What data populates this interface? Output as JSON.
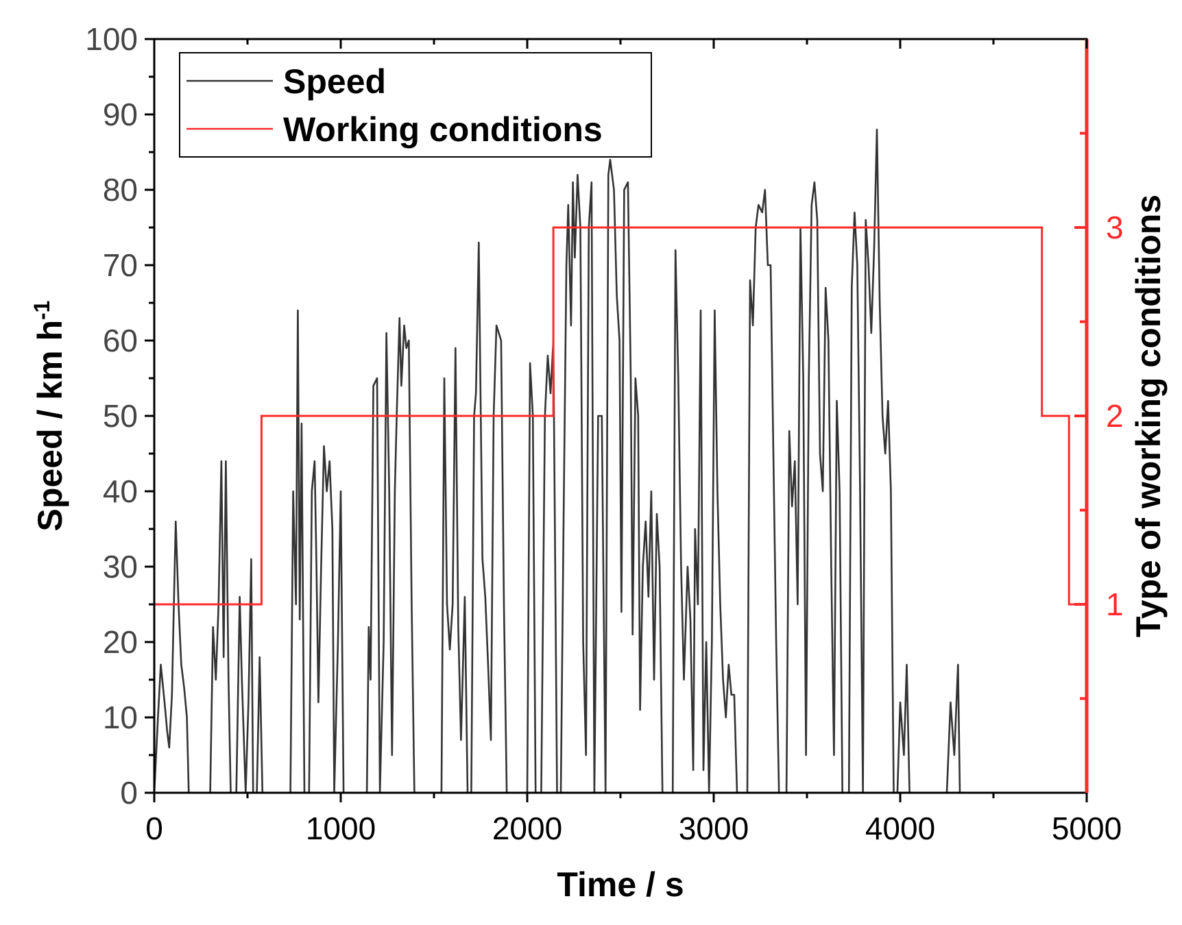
{
  "chart_data": {
    "type": "line",
    "xlabel": "Time / s",
    "ylabel": "Speed / km h",
    "ylabel_superscript": "-1",
    "y2label": "Type of working conditions",
    "xlim": [
      0,
      5000
    ],
    "ylim": [
      0,
      100
    ],
    "y2lim": [
      0,
      4
    ],
    "x_ticks": [
      0,
      1000,
      2000,
      3000,
      4000,
      5000
    ],
    "y_ticks": [
      0,
      10,
      20,
      30,
      40,
      50,
      60,
      70,
      80,
      90,
      100
    ],
    "y2_ticks": [
      1,
      2,
      3
    ],
    "legend": [
      "Speed",
      "Working conditions"
    ],
    "legend_position": "top-left",
    "colors": {
      "speed": "#333333",
      "conditions": "#ff2a2a",
      "axis": "#000000"
    },
    "series": [
      {
        "name": "Speed",
        "axis": "left",
        "points": [
          [
            0,
            0
          ],
          [
            20,
            10
          ],
          [
            35,
            17
          ],
          [
            55,
            12
          ],
          [
            70,
            8
          ],
          [
            80,
            6
          ],
          [
            95,
            13
          ],
          [
            105,
            25
          ],
          [
            115,
            36
          ],
          [
            130,
            25
          ],
          [
            145,
            17
          ],
          [
            160,
            14
          ],
          [
            175,
            10
          ],
          [
            185,
            0
          ],
          [
            300,
            0
          ],
          [
            315,
            22
          ],
          [
            330,
            15
          ],
          [
            345,
            25
          ],
          [
            360,
            44
          ],
          [
            372,
            18
          ],
          [
            384,
            44
          ],
          [
            398,
            15
          ],
          [
            410,
            0
          ],
          [
            440,
            0
          ],
          [
            458,
            26
          ],
          [
            470,
            15
          ],
          [
            490,
            0
          ],
          [
            505,
            12
          ],
          [
            520,
            31
          ],
          [
            530,
            0
          ],
          [
            550,
            0
          ],
          [
            565,
            18
          ],
          [
            580,
            0
          ],
          [
            730,
            0
          ],
          [
            745,
            40
          ],
          [
            760,
            25
          ],
          [
            770,
            64
          ],
          [
            780,
            23
          ],
          [
            790,
            49
          ],
          [
            805,
            0
          ],
          [
            830,
            0
          ],
          [
            845,
            40
          ],
          [
            860,
            44
          ],
          [
            870,
            30
          ],
          [
            880,
            12
          ],
          [
            895,
            30
          ],
          [
            910,
            46
          ],
          [
            925,
            40
          ],
          [
            940,
            44
          ],
          [
            955,
            35
          ],
          [
            965,
            0
          ],
          [
            985,
            20
          ],
          [
            1000,
            40
          ],
          [
            1015,
            0
          ],
          [
            1140,
            0
          ],
          [
            1150,
            22
          ],
          [
            1160,
            15
          ],
          [
            1175,
            54
          ],
          [
            1195,
            55
          ],
          [
            1210,
            0
          ],
          [
            1230,
            20
          ],
          [
            1245,
            61
          ],
          [
            1260,
            40
          ],
          [
            1275,
            5
          ],
          [
            1290,
            40
          ],
          [
            1300,
            50
          ],
          [
            1315,
            63
          ],
          [
            1325,
            54
          ],
          [
            1340,
            62
          ],
          [
            1352,
            59
          ],
          [
            1365,
            60
          ],
          [
            1380,
            25
          ],
          [
            1395,
            0
          ],
          [
            1540,
            0
          ],
          [
            1555,
            55
          ],
          [
            1570,
            25
          ],
          [
            1585,
            19
          ],
          [
            1600,
            25
          ],
          [
            1615,
            59
          ],
          [
            1630,
            22
          ],
          [
            1645,
            7
          ],
          [
            1665,
            26
          ],
          [
            1680,
            0
          ],
          [
            1700,
            0
          ],
          [
            1715,
            50
          ],
          [
            1725,
            53
          ],
          [
            1740,
            73
          ],
          [
            1760,
            31
          ],
          [
            1775,
            26
          ],
          [
            1790,
            17
          ],
          [
            1805,
            7
          ],
          [
            1820,
            50
          ],
          [
            1835,
            62
          ],
          [
            1860,
            60
          ],
          [
            1875,
            25
          ],
          [
            1890,
            0
          ],
          [
            2000,
            0
          ],
          [
            2015,
            57
          ],
          [
            2030,
            50
          ],
          [
            2045,
            0
          ],
          [
            2075,
            0
          ],
          [
            2095,
            50
          ],
          [
            2110,
            58
          ],
          [
            2125,
            53
          ],
          [
            2140,
            60
          ],
          [
            2160,
            0
          ],
          [
            2180,
            0
          ],
          [
            2195,
            36
          ],
          [
            2210,
            70
          ],
          [
            2220,
            78
          ],
          [
            2235,
            62
          ],
          [
            2245,
            81
          ],
          [
            2255,
            71
          ],
          [
            2270,
            82
          ],
          [
            2285,
            75
          ],
          [
            2300,
            20
          ],
          [
            2315,
            5
          ],
          [
            2330,
            75
          ],
          [
            2345,
            81
          ],
          [
            2360,
            0
          ],
          [
            2380,
            50
          ],
          [
            2400,
            50
          ],
          [
            2420,
            0
          ],
          [
            2435,
            82
          ],
          [
            2445,
            84
          ],
          [
            2465,
            80
          ],
          [
            2480,
            66
          ],
          [
            2495,
            60
          ],
          [
            2505,
            24
          ],
          [
            2520,
            80
          ],
          [
            2540,
            81
          ],
          [
            2555,
            55
          ],
          [
            2565,
            21
          ],
          [
            2580,
            55
          ],
          [
            2595,
            50
          ],
          [
            2605,
            11
          ],
          [
            2620,
            30
          ],
          [
            2635,
            36
          ],
          [
            2650,
            26
          ],
          [
            2665,
            40
          ],
          [
            2680,
            15
          ],
          [
            2695,
            37
          ],
          [
            2710,
            30
          ],
          [
            2725,
            0
          ],
          [
            2780,
            0
          ],
          [
            2795,
            72
          ],
          [
            2810,
            55
          ],
          [
            2825,
            30
          ],
          [
            2840,
            15
          ],
          [
            2860,
            30
          ],
          [
            2875,
            23
          ],
          [
            2890,
            3
          ],
          [
            2900,
            35
          ],
          [
            2915,
            25
          ],
          [
            2930,
            64
          ],
          [
            2945,
            3
          ],
          [
            2960,
            20
          ],
          [
            2975,
            0
          ],
          [
            2990,
            20
          ],
          [
            3005,
            64
          ],
          [
            3020,
            40
          ],
          [
            3035,
            25
          ],
          [
            3050,
            15
          ],
          [
            3065,
            10
          ],
          [
            3080,
            17
          ],
          [
            3095,
            13
          ],
          [
            3110,
            13
          ],
          [
            3125,
            0
          ],
          [
            3160,
            0
          ],
          [
            3180,
            0
          ],
          [
            3195,
            68
          ],
          [
            3210,
            62
          ],
          [
            3225,
            75
          ],
          [
            3240,
            78
          ],
          [
            3260,
            77
          ],
          [
            3275,
            80
          ],
          [
            3290,
            70
          ],
          [
            3305,
            70
          ],
          [
            3320,
            45
          ],
          [
            3335,
            20
          ],
          [
            3350,
            0
          ],
          [
            3390,
            0
          ],
          [
            3405,
            48
          ],
          [
            3420,
            38
          ],
          [
            3435,
            44
          ],
          [
            3450,
            25
          ],
          [
            3465,
            75
          ],
          [
            3480,
            55
          ],
          [
            3495,
            5
          ],
          [
            3510,
            55
          ],
          [
            3525,
            78
          ],
          [
            3540,
            81
          ],
          [
            3555,
            76
          ],
          [
            3570,
            45
          ],
          [
            3585,
            40
          ],
          [
            3600,
            67
          ],
          [
            3615,
            60
          ],
          [
            3630,
            30
          ],
          [
            3645,
            5
          ],
          [
            3660,
            52
          ],
          [
            3675,
            40
          ],
          [
            3690,
            0
          ],
          [
            3725,
            0
          ],
          [
            3740,
            67
          ],
          [
            3755,
            77
          ],
          [
            3770,
            70
          ],
          [
            3785,
            40
          ],
          [
            3800,
            0
          ],
          [
            3815,
            76
          ],
          [
            3830,
            70
          ],
          [
            3845,
            61
          ],
          [
            3860,
            72
          ],
          [
            3875,
            88
          ],
          [
            3890,
            65
          ],
          [
            3905,
            50
          ],
          [
            3920,
            45
          ],
          [
            3935,
            52
          ],
          [
            3950,
            40
          ],
          [
            3965,
            0
          ],
          [
            3985,
            0
          ],
          [
            4000,
            12
          ],
          [
            4020,
            5
          ],
          [
            4035,
            17
          ],
          [
            4050,
            0
          ],
          [
            4250,
            0
          ],
          [
            4270,
            12
          ],
          [
            4290,
            5
          ],
          [
            4310,
            17
          ],
          [
            4320,
            0
          ]
        ]
      },
      {
        "name": "Working conditions",
        "axis": "right",
        "step_points": [
          [
            0,
            1
          ],
          [
            575,
            1
          ],
          [
            575,
            2
          ],
          [
            2140,
            2
          ],
          [
            2140,
            3
          ],
          [
            4760,
            3
          ],
          [
            4760,
            2
          ],
          [
            4905,
            2
          ],
          [
            4905,
            1
          ],
          [
            5000,
            1
          ]
        ]
      }
    ]
  }
}
